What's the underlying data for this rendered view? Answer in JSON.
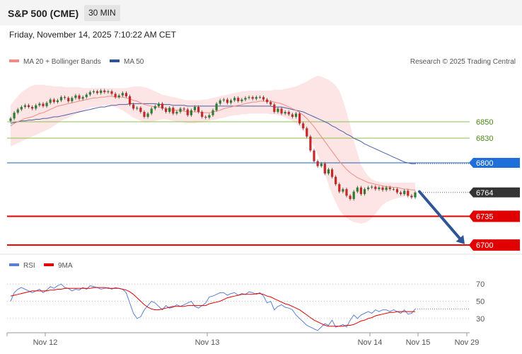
{
  "header": {
    "title": "S&P 500 (CME)",
    "interval": "30 MIN"
  },
  "timestamp": "Friday, November 14, 2025 7:10:22 AM CET",
  "legend": {
    "ma20": "MA 20 + Bollinger Bands",
    "ma50": "MA 50"
  },
  "credit": "Research © 2025 Trading Central",
  "rsi_legend": {
    "rsi": "RSI",
    "ma9": "9MA"
  },
  "colors": {
    "up": "#2e7d32",
    "down": "#c62828",
    "ma20": "#f28b82",
    "ma50": "#4a5fa8",
    "band": "#fde0e0",
    "resistance": "#8bc34a",
    "pivot": "#1565c0",
    "support": "#e00000",
    "last": "#333333",
    "arrow": "#2f5597",
    "rsi": "#5b7fd6",
    "rsi_ma": "#e00000"
  },
  "chart_data": [
    {
      "type": "candlestick",
      "title": "S&P 500 (CME)",
      "interval": "30 MIN",
      "ylim": [
        6688,
        6912
      ],
      "x_ticks": [
        "Nov 12",
        "Nov 13",
        "Nov 14",
        "Nov 15",
        "Nov 29"
      ],
      "levels": [
        {
          "label": "6850",
          "value": 6850,
          "kind": "resistance"
        },
        {
          "label": "6830",
          "value": 6830,
          "kind": "resistance"
        },
        {
          "label": "6800",
          "value": 6800,
          "kind": "pivot"
        },
        {
          "label": "6764",
          "value": 6764,
          "kind": "last"
        },
        {
          "label": "6735",
          "value": 6735,
          "kind": "support"
        },
        {
          "label": "6700",
          "value": 6700,
          "kind": "support"
        }
      ],
      "forecast_arrow": {
        "from": 6765,
        "to": 6701
      },
      "close": [
        6854,
        6861,
        6865,
        6868,
        6870,
        6868,
        6866,
        6870,
        6872,
        6869,
        6873,
        6877,
        6874,
        6876,
        6880,
        6879,
        6875,
        6879,
        6882,
        6878,
        6880,
        6883,
        6886,
        6887,
        6885,
        6888,
        6886,
        6887,
        6884,
        6880,
        6882,
        6885,
        6881,
        6871,
        6866,
        6867,
        6862,
        6856,
        6860,
        6866,
        6869,
        6872,
        6866,
        6862,
        6867,
        6860,
        6862,
        6866,
        6865,
        6858,
        6864,
        6868,
        6862,
        6856,
        6855,
        6858,
        6864,
        6872,
        6876,
        6877,
        6873,
        6876,
        6879,
        6875,
        6877,
        6879,
        6880,
        6878,
        6880,
        6880,
        6877,
        6874,
        6871,
        6862,
        6866,
        6860,
        6862,
        6859,
        6856,
        6860,
        6848,
        6842,
        6832,
        6815,
        6802,
        6796,
        6799,
        6787,
        6792,
        6783,
        6774,
        6765,
        6768,
        6760,
        6756,
        6765,
        6770,
        6762,
        6768,
        6770,
        6771,
        6768,
        6770,
        6767,
        6770,
        6768,
        6768,
        6764,
        6762,
        6766,
        6760,
        6758,
        6764
      ],
      "ma20": [
        6845,
        6848,
        6850,
        6852,
        6854,
        6855,
        6856,
        6858,
        6860,
        6861,
        6863,
        6865,
        6867,
        6869,
        6870,
        6871,
        6872,
        6873,
        6874,
        6875,
        6876,
        6877,
        6878,
        6879,
        6879,
        6880,
        6880,
        6881,
        6881,
        6880,
        6880,
        6880,
        6879,
        6878,
        6876,
        6875,
        6873,
        6871,
        6870,
        6869,
        6868,
        6868,
        6867,
        6866,
        6865,
        6864,
        6864,
        6864,
        6863,
        6862,
        6862,
        6862,
        6862,
        6861,
        6861,
        6861,
        6862,
        6863,
        6864,
        6866,
        6867,
        6868,
        6869,
        6870,
        6871,
        6872,
        6873,
        6874,
        6874,
        6875,
        6875,
        6875,
        6875,
        6874,
        6873,
        6872,
        6870,
        6868,
        6866,
        6864,
        6861,
        6858,
        6854,
        6849,
        6844,
        6838,
        6832,
        6826,
        6820,
        6814,
        6808,
        6802,
        6797,
        6792,
        6788,
        6785,
        6782,
        6780,
        6778,
        6776,
        6775,
        6774,
        6773,
        6772,
        6771,
        6771,
        6770,
        6770,
        6769,
        6768,
        6768,
        6767,
        6767
      ],
      "ma50": [
        6848,
        6849,
        6850,
        6851,
        6851,
        6852,
        6852,
        6853,
        6853,
        6854,
        6854,
        6855,
        6856,
        6856,
        6857,
        6858,
        6859,
        6860,
        6861,
        6862,
        6863,
        6864,
        6865,
        6866,
        6867,
        6868,
        6868,
        6869,
        6870,
        6870,
        6871,
        6871,
        6871,
        6872,
        6872,
        6872,
        6872,
        6872,
        6872,
        6872,
        6872,
        6871,
        6871,
        6871,
        6871,
        6870,
        6870,
        6870,
        6870,
        6869,
        6869,
        6869,
        6869,
        6869,
        6869,
        6869,
        6869,
        6869,
        6869,
        6869,
        6869,
        6869,
        6869,
        6869,
        6869,
        6869,
        6869,
        6869,
        6869,
        6869,
        6869,
        6869,
        6869,
        6868,
        6868,
        6868,
        6867,
        6866,
        6865,
        6864,
        6863,
        6862,
        6860,
        6858,
        6856,
        6854,
        6852,
        6850,
        6848,
        6845,
        6843,
        6840,
        6838,
        6835,
        6833,
        6830,
        6828,
        6826,
        6823,
        6821,
        6819,
        6817,
        6815,
        6813,
        6811,
        6809,
        6807,
        6805,
        6803,
        6801,
        6800,
        6799,
        6799
      ],
      "band_upper": [
        6870,
        6876,
        6881,
        6886,
        6889,
        6892,
        6894,
        6895,
        6895,
        6895,
        6894,
        6894,
        6893,
        6893,
        6893,
        6892,
        6892,
        6892,
        6892,
        6892,
        6891,
        6891,
        6891,
        6891,
        6891,
        6891,
        6891,
        6891,
        6891,
        6891,
        6891,
        6891,
        6891,
        6892,
        6893,
        6893,
        6893,
        6892,
        6891,
        6889,
        6887,
        6885,
        6883,
        6882,
        6881,
        6880,
        6879,
        6878,
        6877,
        6876,
        6876,
        6876,
        6876,
        6877,
        6877,
        6878,
        6879,
        6880,
        6881,
        6882,
        6883,
        6884,
        6885,
        6886,
        6887,
        6887,
        6888,
        6888,
        6888,
        6888,
        6888,
        6888,
        6888,
        6889,
        6889,
        6889,
        6890,
        6891,
        6892,
        6893,
        6895,
        6897,
        6899,
        6902,
        6904,
        6906,
        6905,
        6903,
        6901,
        6898,
        6894,
        6888,
        6876,
        6862,
        6846,
        6828,
        6812,
        6798,
        6790,
        6784,
        6780,
        6778,
        6777,
        6776,
        6776,
        6776,
        6776,
        6776,
        6776,
        6776,
        6776,
        6776,
        6776
      ],
      "band_lower": [
        6820,
        6822,
        6824,
        6826,
        6828,
        6830,
        6832,
        6834,
        6836,
        6838,
        6840,
        6842,
        6845,
        6848,
        6851,
        6853,
        6855,
        6857,
        6859,
        6861,
        6863,
        6865,
        6867,
        6868,
        6868,
        6869,
        6870,
        6870,
        6869,
        6868,
        6866,
        6864,
        6861,
        6858,
        6855,
        6853,
        6851,
        6849,
        6849,
        6850,
        6851,
        6852,
        6853,
        6853,
        6852,
        6851,
        6850,
        6850,
        6849,
        6848,
        6848,
        6848,
        6849,
        6849,
        6850,
        6851,
        6852,
        6853,
        6854,
        6855,
        6856,
        6857,
        6858,
        6858,
        6859,
        6859,
        6860,
        6860,
        6860,
        6860,
        6860,
        6860,
        6859,
        6859,
        6858,
        6857,
        6855,
        6853,
        6851,
        6848,
        6844,
        6839,
        6834,
        6828,
        6820,
        6810,
        6798,
        6786,
        6774,
        6762,
        6752,
        6743,
        6737,
        6733,
        6730,
        6728,
        6727,
        6726,
        6727,
        6729,
        6733,
        6738,
        6744,
        6749,
        6752,
        6754,
        6756,
        6757,
        6758,
        6759,
        6759,
        6759,
        6759
      ]
    },
    {
      "type": "line",
      "title": "RSI",
      "ylim": [
        15,
        85
      ],
      "y_ticks": [
        70,
        50,
        30
      ],
      "series": [
        {
          "name": "RSI",
          "values": [
            50,
            60,
            64,
            66,
            64,
            62,
            60,
            62,
            64,
            60,
            63,
            67,
            65,
            68,
            70,
            66,
            65,
            62,
            64,
            63,
            66,
            64,
            68,
            67,
            66,
            64,
            65,
            66,
            64,
            66,
            65,
            64,
            60,
            48,
            36,
            30,
            32,
            40,
            45,
            50,
            48,
            44,
            40,
            45,
            42,
            43,
            46,
            44,
            46,
            48,
            50,
            44,
            42,
            45,
            48,
            55,
            56,
            58,
            60,
            60,
            57,
            59,
            60,
            57,
            59,
            58,
            61,
            60,
            58,
            60,
            56,
            48,
            50,
            40,
            44,
            46,
            43,
            42,
            40,
            34,
            30,
            26,
            22,
            20,
            18,
            16,
            20,
            24,
            22,
            28,
            20,
            21,
            23,
            20,
            28,
            34,
            30,
            34,
            36,
            38,
            36,
            40,
            38,
            40,
            40,
            38,
            40,
            38,
            36,
            40,
            35,
            36,
            41
          ]
        },
        {
          "name": "9MA",
          "values": [
            56,
            57,
            58,
            59,
            60,
            61,
            62,
            62,
            62,
            62,
            62,
            63,
            63,
            64,
            64,
            65,
            65,
            65,
            65,
            65,
            65,
            65,
            65,
            66,
            66,
            66,
            66,
            65,
            65,
            65,
            65,
            64,
            63,
            61,
            58,
            54,
            50,
            46,
            43,
            41,
            40,
            40,
            41,
            42,
            43,
            44,
            44,
            44,
            44,
            45,
            45,
            45,
            45,
            45,
            45,
            47,
            48,
            49,
            50,
            52,
            54,
            55,
            56,
            57,
            58,
            58,
            58,
            58,
            59,
            59,
            58,
            56,
            55,
            53,
            51,
            49,
            47,
            46,
            44,
            42,
            40,
            37,
            34,
            31,
            28,
            26,
            24,
            22,
            21,
            21,
            21,
            21,
            21,
            22,
            22,
            23,
            25,
            27,
            28,
            30,
            31,
            33,
            34,
            35,
            36,
            37,
            37,
            38,
            38,
            38,
            38,
            38,
            38
          ]
        }
      ]
    }
  ]
}
